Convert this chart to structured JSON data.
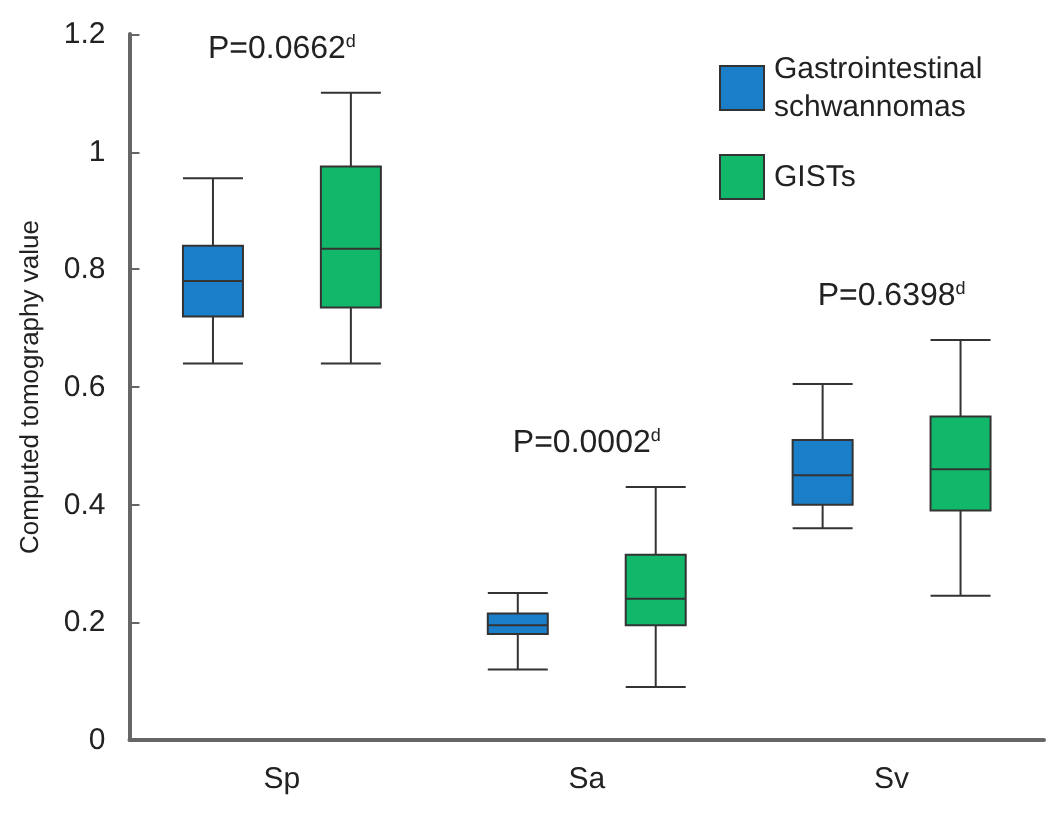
{
  "chart_data": {
    "type": "box",
    "ylabel": "Computed tomography value",
    "categories": [
      "Sp",
      "Sa",
      "Sv"
    ],
    "series": [
      {
        "name": "Gastrointestinal schwannomas",
        "color": "#1a7fc8",
        "boxes": [
          {
            "low": 0.64,
            "q1": 0.72,
            "median": 0.78,
            "q3": 0.84,
            "high": 0.955
          },
          {
            "low": 0.12,
            "q1": 0.18,
            "median": 0.195,
            "q3": 0.215,
            "high": 0.25
          },
          {
            "low": 0.36,
            "q1": 0.4,
            "median": 0.45,
            "q3": 0.51,
            "high": 0.605
          }
        ]
      },
      {
        "name": "GISTs",
        "color": "#12b86a",
        "boxes": [
          {
            "low": 0.64,
            "q1": 0.735,
            "median": 0.835,
            "q3": 0.975,
            "high": 1.1
          },
          {
            "low": 0.09,
            "q1": 0.195,
            "median": 0.24,
            "q3": 0.315,
            "high": 0.43
          },
          {
            "low": 0.245,
            "q1": 0.39,
            "median": 0.46,
            "q3": 0.55,
            "high": 0.68
          }
        ]
      }
    ],
    "ylim": [
      0,
      1.2
    ],
    "yticks": [
      0,
      0.2,
      0.4,
      0.6,
      0.8,
      1,
      1.2
    ],
    "grid": false,
    "legend": "top right",
    "annotations": [
      "P=0.0662$^{d}$",
      "P=0.0002$^{d}$",
      "P=0.6398$^{d}$"
    ]
  }
}
